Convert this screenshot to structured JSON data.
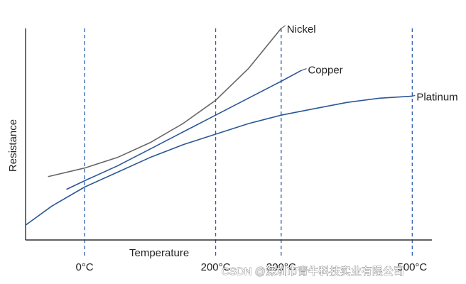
{
  "chart_data": {
    "type": "line",
    "xlabel": "Temperature",
    "ylabel": "Resistance",
    "x_ticks": [
      "0°C",
      "200°C",
      "300°C",
      "500°C"
    ],
    "x_tick_values": [
      0,
      200,
      300,
      500
    ],
    "xlim": [
      -90,
      530
    ],
    "ylim": [
      0,
      100
    ],
    "grid": false,
    "legend": "inline-end-labels",
    "series": [
      {
        "name": "Nickel",
        "color": "#666666",
        "x": [
          -55,
          0,
          50,
          100,
          150,
          200,
          250,
          300
        ],
        "y": [
          30,
          34,
          39,
          46,
          55,
          66,
          81,
          100
        ]
      },
      {
        "name": "Copper",
        "color": "#2b5797",
        "x": [
          -27,
          0,
          50,
          100,
          150,
          200,
          250,
          300,
          330
        ],
        "y": [
          24,
          28,
          35,
          43,
          51,
          59,
          67,
          75,
          80
        ]
      },
      {
        "name": "Platinum",
        "color": "#2b5797",
        "x": [
          -90,
          -50,
          0,
          50,
          100,
          150,
          200,
          250,
          300,
          350,
          400,
          450,
          500
        ],
        "y": [
          7,
          16,
          25,
          32,
          39,
          45,
          50,
          55,
          59,
          62,
          65,
          67,
          68
        ]
      }
    ],
    "reference_lines": [
      0,
      200,
      300,
      500
    ]
  },
  "watermark": {
    "text": "CSDN @深圳市青牛科技实业有限公司"
  }
}
